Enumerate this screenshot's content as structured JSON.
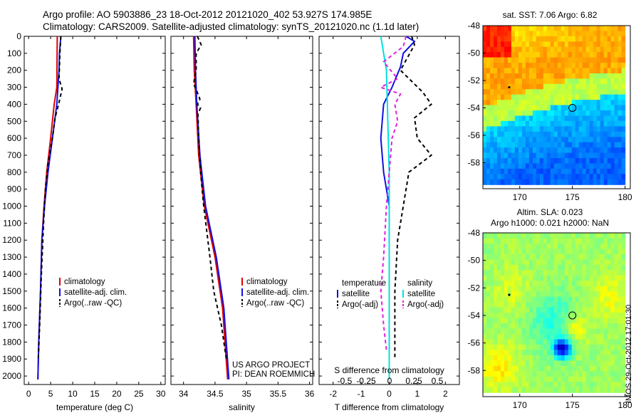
{
  "header": {
    "line1": "Argo profile: AO 5903886_23 18-Oct-2012 20121020_402 53.927S 174.985E",
    "line2": "Climatology: CARS2009. Satellite-adjusted climatology: synTS_20121020.nc (1.1d later)"
  },
  "side_stamp": "IMOS 29-Oct-2012 17:01:30",
  "colors": {
    "climatology": "#e00000",
    "satellite": "#1010e0",
    "argo": "#000000",
    "salinity_sat": "#00e0e0",
    "salinity_argo": "#e020e0"
  },
  "chart_data": [
    {
      "id": "temperature",
      "type": "line",
      "xlabel": "temperature (deg C)",
      "ylabel": "",
      "xlim": [
        -1,
        31
      ],
      "ylim": [
        2050,
        0
      ],
      "xticks": [
        0,
        5,
        10,
        15,
        20,
        25,
        30
      ],
      "yticks": [
        0,
        100,
        200,
        300,
        400,
        500,
        600,
        700,
        800,
        900,
        1000,
        1100,
        1200,
        1300,
        1400,
        1500,
        1600,
        1700,
        1800,
        1900,
        2000
      ],
      "legend": [
        "climatology",
        "satellite-adj. clim.",
        "Argo(..raw -QC)"
      ],
      "series": [
        {
          "name": "climatology",
          "color": "#e00000",
          "dash": "",
          "points": [
            [
              6.5,
              0
            ],
            [
              6.4,
              300
            ],
            [
              5.8,
              400
            ],
            [
              5.0,
              600
            ],
            [
              4.1,
              800
            ],
            [
              3.5,
              1000
            ],
            [
              3.0,
              1200
            ],
            [
              2.7,
              1500
            ],
            [
              2.3,
              1800
            ],
            [
              2.1,
              2020
            ]
          ]
        },
        {
          "name": "satellite-adj. clim.",
          "color": "#1010e0",
          "dash": "",
          "points": [
            [
              7.3,
              0
            ],
            [
              7.0,
              100
            ],
            [
              6.9,
              200
            ],
            [
              6.4,
              400
            ],
            [
              5.4,
              600
            ],
            [
              4.4,
              800
            ],
            [
              3.6,
              1000
            ],
            [
              3.0,
              1200
            ],
            [
              2.7,
              1500
            ],
            [
              2.3,
              1800
            ],
            [
              2.1,
              2020
            ]
          ]
        },
        {
          "name": "Argo(..raw -QC)",
          "color": "#000000",
          "dash": "5,4",
          "points": [
            [
              7.3,
              0
            ],
            [
              7.1,
              100
            ],
            [
              6.9,
              250
            ],
            [
              7.6,
              310
            ],
            [
              6.8,
              400
            ],
            [
              6.0,
              480
            ],
            [
              5.4,
              600
            ],
            [
              4.4,
              750
            ],
            [
              3.8,
              900
            ],
            [
              3.4,
              1100
            ],
            [
              2.9,
              1400
            ],
            [
              2.5,
              1700
            ],
            [
              2.2,
              1900
            ]
          ]
        }
      ]
    },
    {
      "id": "salinity",
      "type": "line",
      "xlabel": "salinity",
      "ylabel": "",
      "xlim": [
        33.8,
        36.05
      ],
      "ylim": [
        2050,
        0
      ],
      "xticks": [
        34,
        34.5,
        35,
        35.5,
        36
      ],
      "xticklabels": [
        "34",
        "34.5",
        "35",
        "35.5",
        "36"
      ],
      "legend": [
        "climatology",
        "satellite-adj. clim.",
        "Argo(..raw -QC)"
      ],
      "annotation": [
        "US ARGO PROJECT",
        "PI: DEAN ROEMMICH"
      ],
      "series": [
        {
          "name": "climatology",
          "color": "#e00000",
          "dash": "",
          "points": [
            [
              34.16,
              0
            ],
            [
              34.17,
              200
            ],
            [
              34.2,
              400
            ],
            [
              34.24,
              700
            ],
            [
              34.33,
              1000
            ],
            [
              34.5,
              1300
            ],
            [
              34.62,
              1600
            ],
            [
              34.7,
              2020
            ]
          ]
        },
        {
          "name": "satellite-adj. clim.",
          "color": "#1010e0",
          "dash": "",
          "points": [
            [
              34.18,
              0
            ],
            [
              34.19,
              200
            ],
            [
              34.21,
              400
            ],
            [
              34.26,
              700
            ],
            [
              34.35,
              1000
            ],
            [
              34.52,
              1300
            ],
            [
              34.64,
              1600
            ],
            [
              34.72,
              2020
            ]
          ]
        },
        {
          "name": "Argo(..raw -QC)",
          "color": "#000000",
          "dash": "5,4",
          "points": [
            [
              34.22,
              0
            ],
            [
              34.28,
              50
            ],
            [
              34.2,
              100
            ],
            [
              34.2,
              200
            ],
            [
              34.16,
              280
            ],
            [
              34.22,
              330
            ],
            [
              34.26,
              370
            ],
            [
              34.22,
              400
            ],
            [
              34.27,
              420
            ],
            [
              34.23,
              460
            ],
            [
              34.24,
              600
            ],
            [
              34.27,
              800
            ],
            [
              34.32,
              1000
            ],
            [
              34.42,
              1300
            ],
            [
              34.48,
              1500
            ],
            [
              34.6,
              1700
            ],
            [
              34.68,
              1900
            ]
          ]
        }
      ]
    },
    {
      "id": "differences",
      "type": "line",
      "xlabel": "T difference from climatology",
      "ylabel": "",
      "xlim": [
        -2.5,
        2.5
      ],
      "ylim": [
        2050,
        0
      ],
      "xticks": [
        -2,
        -1,
        0,
        1,
        2
      ],
      "top_xlabel": "S difference from climatology",
      "top_xticks": [
        "-0.5",
        "-0.25",
        "0",
        "0.25",
        "0.5"
      ],
      "legend_groups": [
        {
          "title": "temperature",
          "items": [
            "satellite",
            "Argo(-adj)"
          ]
        },
        {
          "title": "salinity",
          "items": [
            "satellite",
            "Argo(-adj)"
          ]
        }
      ],
      "series": [
        {
          "name": "temperature satellite",
          "color": "#1010e0",
          "dash": "",
          "points": [
            [
              0.6,
              0
            ],
            [
              0.9,
              30
            ],
            [
              0.5,
              100
            ],
            [
              0.4,
              180
            ],
            [
              0.1,
              300
            ],
            [
              -0.2,
              400
            ],
            [
              -0.3,
              600
            ],
            [
              -0.2,
              800
            ],
            [
              -0.1,
              900
            ],
            [
              0,
              1000
            ],
            [
              0,
              2020
            ]
          ]
        },
        {
          "name": "temperature Argo(-adj)",
          "color": "#000000",
          "dash": "5,4",
          "points": [
            [
              0.8,
              0
            ],
            [
              0.9,
              50
            ],
            [
              0.4,
              200
            ],
            [
              1.2,
              330
            ],
            [
              1.5,
              400
            ],
            [
              0.9,
              480
            ],
            [
              1.0,
              600
            ],
            [
              1.5,
              700
            ],
            [
              0.7,
              800
            ],
            [
              0.5,
              1000
            ],
            [
              0.3,
              1200
            ],
            [
              0.2,
              1500
            ],
            [
              0.2,
              1900
            ]
          ]
        },
        {
          "name": "salinity satellite",
          "color": "#00e0e0",
          "dash": "",
          "points": [
            [
              -0.3,
              0
            ],
            [
              -0.2,
              100
            ],
            [
              -0.1,
              200
            ],
            [
              -0.05,
              500
            ],
            [
              0,
              800
            ],
            [
              0,
              2020
            ]
          ]
        },
        {
          "name": "salinity Argo(-adj)",
          "color": "#e020e0",
          "dash": "5,4",
          "points": [
            [
              0.6,
              0
            ],
            [
              0.5,
              60
            ],
            [
              -0.2,
              150
            ],
            [
              0.3,
              250
            ],
            [
              -0.3,
              300
            ],
            [
              0.4,
              340
            ],
            [
              0.2,
              400
            ],
            [
              0.3,
              500
            ],
            [
              0.1,
              600
            ],
            [
              0,
              800
            ],
            [
              -0.1,
              1000
            ],
            [
              -0.2,
              1300
            ],
            [
              -0.3,
              1500
            ],
            [
              -0.2,
              1700
            ],
            [
              -0.1,
              1850
            ]
          ]
        }
      ]
    },
    {
      "id": "sst_map",
      "type": "heatmap",
      "title": "sat. SST: 7.06 Argo: 6.82",
      "xlim": [
        166.5,
        180.5
      ],
      "ylim": [
        -59.9,
        -48
      ],
      "xticks": [
        170,
        175,
        180
      ],
      "yticks": [
        -48,
        -50,
        -52,
        -54,
        -56,
        -58
      ],
      "marker": [
        175,
        -54
      ],
      "dot": [
        169,
        -52.5
      ]
    },
    {
      "id": "sla_map",
      "type": "heatmap",
      "title": "Altim. SLA: 0.023",
      "subtitle": "Argo h1000: 0.021 h2000: NaN",
      "xlim": [
        166.5,
        180.5
      ],
      "ylim": [
        -59.9,
        -48
      ],
      "xticks": [
        170,
        175,
        180
      ],
      "yticks": [
        -48,
        -50,
        -52,
        -54,
        -56,
        -58
      ],
      "marker": [
        175,
        -54
      ],
      "dot": [
        169,
        -52.5
      ]
    }
  ]
}
